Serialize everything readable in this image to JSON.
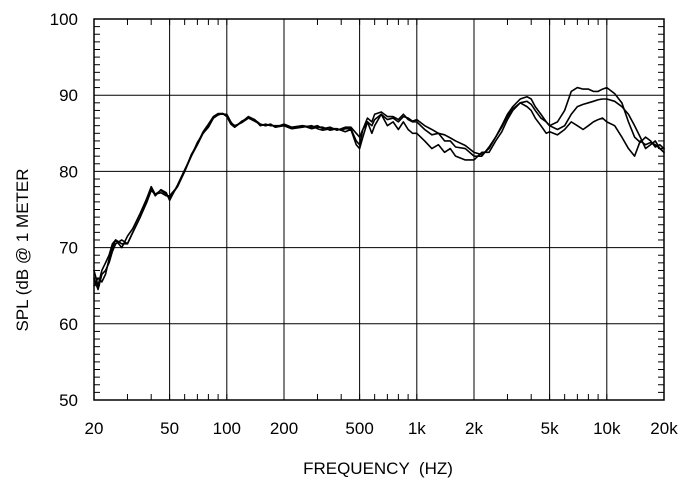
{
  "chart_data": {
    "type": "line",
    "title": "",
    "xlabel": "FREQUENCY  (HZ)",
    "ylabel": "SPL (dB @ 1 METER",
    "x_scale": "log",
    "xlim": [
      20,
      20000
    ],
    "ylim": [
      50,
      100
    ],
    "grid": true,
    "x_ticks": [
      {
        "value": 20,
        "label": "20"
      },
      {
        "value": 50,
        "label": "50"
      },
      {
        "value": 100,
        "label": "100"
      },
      {
        "value": 200,
        "label": "200"
      },
      {
        "value": 500,
        "label": "500"
      },
      {
        "value": 1000,
        "label": "1k"
      },
      {
        "value": 2000,
        "label": "2k"
      },
      {
        "value": 5000,
        "label": "5k"
      },
      {
        "value": 10000,
        "label": "10k"
      },
      {
        "value": 20000,
        "label": "20k"
      }
    ],
    "y_ticks": [
      {
        "value": 50,
        "label": "50"
      },
      {
        "value": 60,
        "label": "60"
      },
      {
        "value": 70,
        "label": "70"
      },
      {
        "value": 80,
        "label": "80"
      },
      {
        "value": 90,
        "label": "90"
      },
      {
        "value": 100,
        "label": "100"
      }
    ],
    "line_color": "#000000",
    "series": [
      {
        "x": [
          20,
          21,
          22,
          23,
          24,
          25,
          26,
          28,
          30,
          32,
          35,
          38,
          40,
          42,
          45,
          48,
          50,
          55,
          60,
          65,
          70,
          75,
          80,
          85,
          90,
          95,
          100,
          105,
          110,
          120,
          130,
          140,
          150,
          160,
          170,
          180,
          200,
          220,
          250,
          280,
          300,
          320,
          350,
          380,
          400,
          420,
          450,
          480,
          500,
          520,
          550,
          580,
          600,
          650,
          700,
          750,
          800,
          850,
          900,
          950,
          1000,
          1100,
          1200,
          1300,
          1400,
          1500,
          1600,
          1800,
          2000,
          2200,
          2400,
          2600,
          2800,
          3000,
          3200,
          3500,
          3800,
          4000,
          4200,
          4500,
          4800,
          5000,
          5500,
          6000,
          6500,
          7000,
          7500,
          8000,
          8500,
          9000,
          9500,
          10000,
          11000,
          12000,
          13000,
          14000,
          15000,
          16000,
          17000,
          18000,
          19000,
          20000
        ],
        "y": [
          66,
          64.5,
          66.5,
          67,
          68,
          69.5,
          70.5,
          71,
          70.5,
          72,
          74,
          76,
          77.5,
          77,
          77.5,
          77,
          76.5,
          78,
          80,
          82,
          83.5,
          85,
          86,
          87,
          87.5,
          87.5,
          87.5,
          86.5,
          85.8,
          86.5,
          87.2,
          86.8,
          86.2,
          86,
          86.2,
          85.8,
          86.2,
          85.8,
          86,
          85.8,
          86,
          85.6,
          85.8,
          85.4,
          85.6,
          85.8,
          85.8,
          85,
          84.5,
          85.5,
          86.5,
          86,
          86.8,
          87.5,
          86.8,
          87,
          86.5,
          87.2,
          87,
          86.6,
          86.8,
          86,
          85.5,
          85,
          84.8,
          84.4,
          84,
          83.4,
          82.5,
          82.2,
          83,
          84.5,
          86,
          87.5,
          88.5,
          89.5,
          89.8,
          89.5,
          88.5,
          87.5,
          86.5,
          86,
          86.5,
          88,
          90.5,
          91,
          90.8,
          90.8,
          90.5,
          90.5,
          90.8,
          91,
          90.2,
          89,
          86.5,
          84.5,
          83.8,
          84.5,
          84,
          83.2,
          83.5,
          83
        ]
      },
      {
        "x": [
          20,
          21,
          22,
          23,
          24,
          25,
          26,
          28,
          30,
          32,
          35,
          38,
          40,
          42,
          45,
          48,
          50,
          55,
          60,
          65,
          70,
          75,
          80,
          85,
          90,
          95,
          100,
          105,
          110,
          120,
          130,
          140,
          150,
          160,
          170,
          180,
          200,
          220,
          250,
          280,
          300,
          320,
          350,
          380,
          400,
          420,
          450,
          480,
          500,
          520,
          550,
          580,
          600,
          650,
          700,
          750,
          800,
          850,
          900,
          950,
          1000,
          1100,
          1200,
          1300,
          1400,
          1500,
          1600,
          1800,
          2000,
          2200,
          2400,
          2600,
          2800,
          3000,
          3200,
          3500,
          3800,
          4000,
          4200,
          4500,
          4800,
          5000,
          5500,
          6000,
          6500,
          7000,
          7500,
          8000,
          8500,
          9000,
          9500,
          10000,
          11000,
          12000,
          13000,
          14000,
          15000,
          16000,
          17000,
          18000,
          19000,
          20000
        ],
        "y": [
          65,
          66,
          65.5,
          66.5,
          68.5,
          70,
          71,
          70,
          71.5,
          72.5,
          74.5,
          76.5,
          78,
          77,
          77.2,
          76.8,
          76.8,
          78,
          80,
          82.2,
          83.6,
          85.2,
          86.2,
          87.2,
          87.6,
          87.6,
          87.4,
          86.4,
          86,
          86.4,
          87,
          86.8,
          86,
          86.2,
          86,
          86,
          86,
          85.6,
          86,
          85.6,
          85.8,
          85.8,
          85.4,
          85.6,
          85.4,
          85.6,
          85.6,
          84,
          83.5,
          85.5,
          87,
          86.5,
          87.5,
          87.8,
          87.2,
          87.2,
          86.8,
          87.5,
          86.8,
          86.5,
          86.5,
          85.5,
          84.8,
          85,
          84,
          84,
          83.2,
          83,
          82,
          82,
          83.2,
          84.5,
          85.8,
          87.2,
          88.2,
          89,
          89.2,
          88.8,
          88,
          87,
          86.5,
          86,
          85.5,
          86,
          87.5,
          88.5,
          88.8,
          89,
          89.2,
          89.4,
          89.5,
          89.5,
          89.2,
          88.5,
          87.5,
          86,
          84.5,
          83,
          83.5,
          84,
          83,
          82.5
        ]
      },
      {
        "x": [
          20,
          21,
          22,
          23,
          24,
          25,
          26,
          28,
          30,
          32,
          35,
          38,
          40,
          42,
          45,
          48,
          50,
          55,
          60,
          65,
          70,
          75,
          80,
          85,
          90,
          95,
          100,
          105,
          110,
          120,
          130,
          140,
          150,
          160,
          170,
          180,
          200,
          220,
          250,
          280,
          300,
          320,
          350,
          380,
          400,
          420,
          450,
          480,
          500,
          520,
          550,
          580,
          600,
          650,
          700,
          750,
          800,
          850,
          900,
          950,
          1000,
          1100,
          1200,
          1300,
          1400,
          1500,
          1600,
          1800,
          2000,
          2200,
          2400,
          2600,
          2800,
          3000,
          3200,
          3500,
          3800,
          4000,
          4200,
          4500,
          4800,
          5000,
          5500,
          6000,
          6500,
          7000,
          7500,
          8000,
          8500,
          9000,
          9500,
          10000,
          11000,
          12000,
          13000,
          14000,
          15000,
          16000,
          17000,
          18000,
          19000,
          20000
        ],
        "y": [
          67,
          65,
          67,
          68,
          69,
          70.5,
          71,
          70.5,
          70.5,
          72,
          74,
          76.5,
          77.8,
          76.8,
          77.6,
          77.2,
          76.2,
          78.2,
          80.2,
          82,
          83.8,
          85,
          85.8,
          87,
          87.4,
          87.6,
          87.2,
          86.2,
          85.8,
          86.6,
          87,
          86.6,
          86.2,
          86,
          86.2,
          85.8,
          86,
          85.6,
          85.8,
          86,
          85.6,
          85.4,
          85.6,
          85.6,
          85.4,
          85.2,
          85.5,
          83.5,
          83,
          84.5,
          86.5,
          85,
          86,
          87.5,
          86,
          86.5,
          85.5,
          86.5,
          85.5,
          85,
          85,
          84,
          83,
          83.5,
          82.5,
          83,
          82,
          81.5,
          81.5,
          82.5,
          82.5,
          84,
          85.2,
          86.8,
          88,
          89,
          88.5,
          88,
          87,
          86,
          85,
          85.2,
          84.8,
          85.5,
          86.5,
          86,
          85.5,
          86,
          86.5,
          86.8,
          87,
          86.5,
          86,
          84.5,
          83,
          82,
          84,
          83.5,
          83.8,
          83.5,
          83,
          83
        ]
      }
    ]
  }
}
